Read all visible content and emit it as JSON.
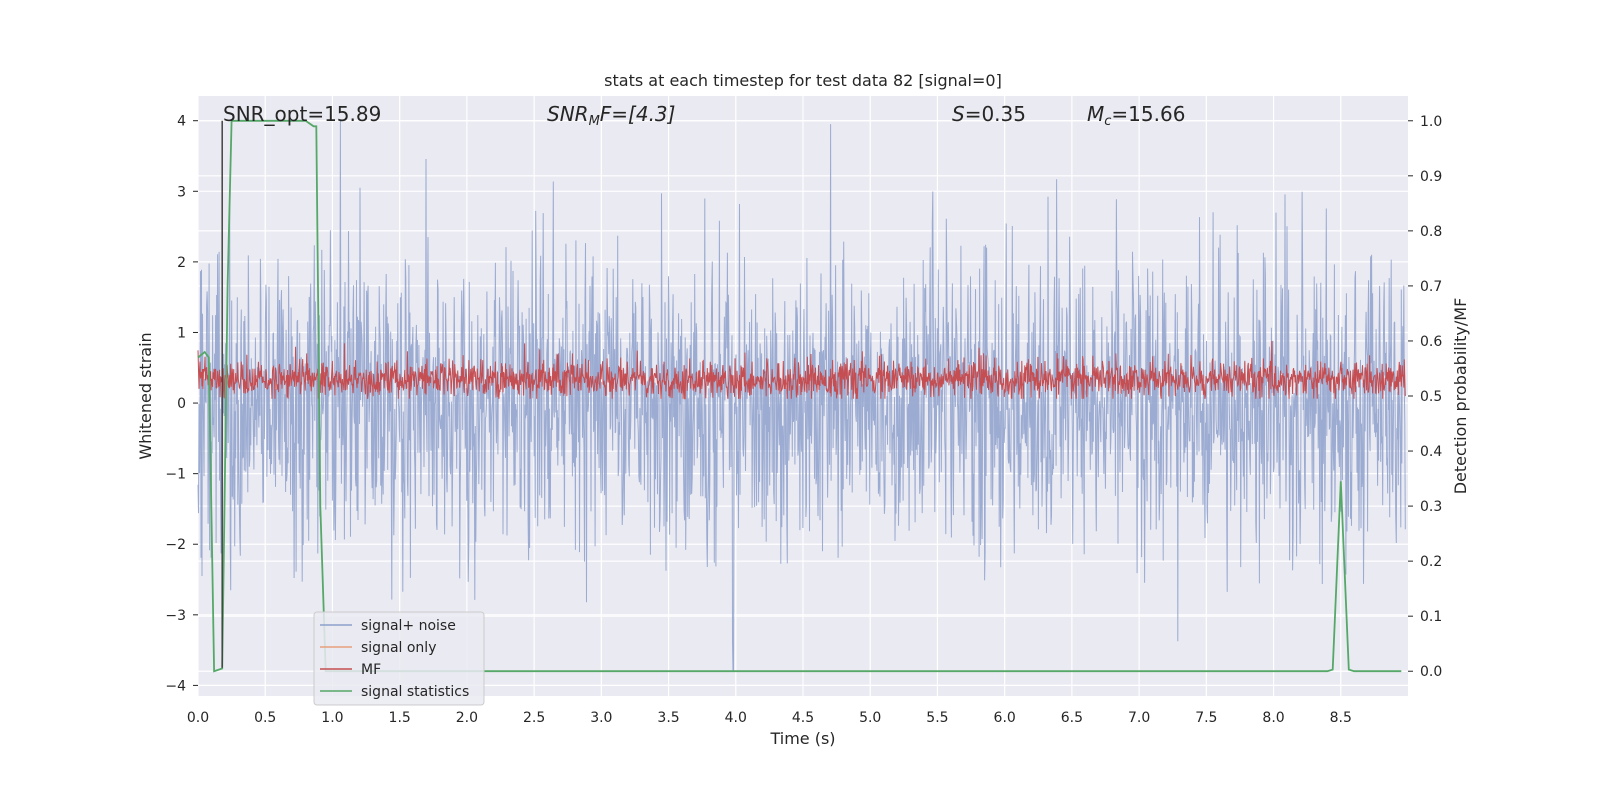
{
  "chart_data": {
    "type": "line",
    "title": "stats at each timestep for test data 82 [signal=0]",
    "xlabel": "Time (s)",
    "ylabel_left": "Whitened strain",
    "ylabel_right": "Detection probability/MF",
    "xlim": [
      0.0,
      9.0
    ],
    "ylim_left": [
      -4.15,
      4.35
    ],
    "ylim_right": [
      -0.045,
      1.045
    ],
    "x_ticks": [
      "0.0",
      "0.5",
      "1.0",
      "1.5",
      "2.0",
      "2.5",
      "3.0",
      "3.5",
      "4.0",
      "4.5",
      "5.0",
      "5.5",
      "6.0",
      "6.5",
      "7.0",
      "7.5",
      "8.0",
      "8.5"
    ],
    "y_ticks_left": [
      "−4",
      "−3",
      "−2",
      "−1",
      "0",
      "1",
      "2",
      "3",
      "4"
    ],
    "y_ticks_right": [
      "0.0",
      "0.1",
      "0.2",
      "0.3",
      "0.4",
      "0.5",
      "0.6",
      "0.7",
      "0.8",
      "0.9",
      "1.0"
    ],
    "grid": true,
    "legend_position": "lower-left",
    "annotations": {
      "snr_opt": "SNR_opt=15.89",
      "snr_mf_main": "SNR",
      "snr_mf_sub": "M",
      "snr_mf_rest": "F=[4.3]",
      "s_main": "S",
      "s_rest": "=0.35",
      "mc_main": "M",
      "mc_sub": "c",
      "mc_rest": "=15.66"
    },
    "marker_line_x": 0.18,
    "series": [
      {
        "name": "signal+ noise",
        "color": "#8da0cb",
        "axis": "left",
        "approx_range": [
          -3.8,
          4.0
        ]
      },
      {
        "name": "signal only",
        "color": "#e8a07c",
        "axis": "left"
      },
      {
        "name": "MF",
        "color": "#c44e52",
        "axis": "right",
        "approx_range": [
          0.495,
          0.6
        ]
      },
      {
        "name": "signal statistics",
        "color": "#55a868",
        "axis": "right",
        "x": [
          0.0,
          0.05,
          0.08,
          0.12,
          0.18,
          0.22,
          0.25,
          0.3,
          0.5,
          0.8,
          0.86,
          0.88,
          0.91,
          0.95,
          1.5,
          2.0,
          3.0,
          4.0,
          5.0,
          6.0,
          7.0,
          8.0,
          8.4,
          8.44,
          8.5,
          8.56,
          8.6,
          8.95
        ],
        "y": [
          0.57,
          0.58,
          0.57,
          0.0,
          0.005,
          0.7,
          1.0,
          1.0,
          1.0,
          1.0,
          0.99,
          0.99,
          0.3,
          0.0,
          0.0,
          0.0,
          0.0,
          0.0,
          0.0,
          0.0,
          0.0,
          0.0,
          0.0,
          0.003,
          0.345,
          0.003,
          0.0,
          0.0
        ]
      }
    ]
  }
}
